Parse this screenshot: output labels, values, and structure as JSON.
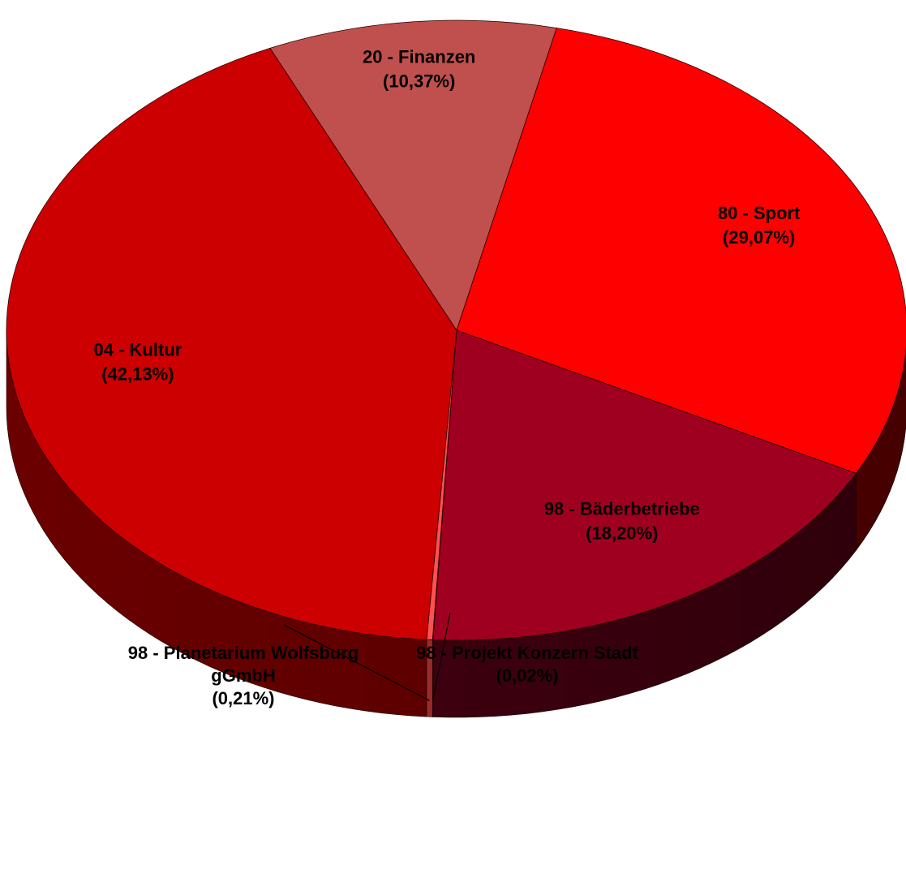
{
  "chart_data": {
    "type": "pie",
    "style": "3d",
    "slices": [
      {
        "name": "20 - Finanzen",
        "label": "(10,37%)",
        "value": 10.37,
        "color": "#c0504d",
        "side_color": "#8a3532"
      },
      {
        "name": "80 - Sport",
        "label": "(29,07%)",
        "value": 29.07,
        "color": "#ff0000",
        "side_color": "#6a0000"
      },
      {
        "name": "98 - Bäderbetriebe",
        "label": "(18,20%)",
        "value": 18.2,
        "color": "#a00020",
        "side_color": "#450010"
      },
      {
        "name": "98 - Projekt Konzern Stadt",
        "label": "(0,02%)",
        "value": 0.02,
        "color": "#f08080",
        "side_color": "#a05050"
      },
      {
        "name": "98 - Planetarium Wolfsburg gGmbH",
        "name_lines": [
          "98 - Planetarium Wolfsburg",
          "gGmbH"
        ],
        "label": "(0,21%)",
        "value": 0.21,
        "color": "#ff5050",
        "side_color": "#b03030"
      },
      {
        "name": "04 - Kultur",
        "label": "(42,13%)",
        "value": 42.13,
        "color": "#cc0000",
        "side_color": "#6b0000"
      }
    ]
  }
}
